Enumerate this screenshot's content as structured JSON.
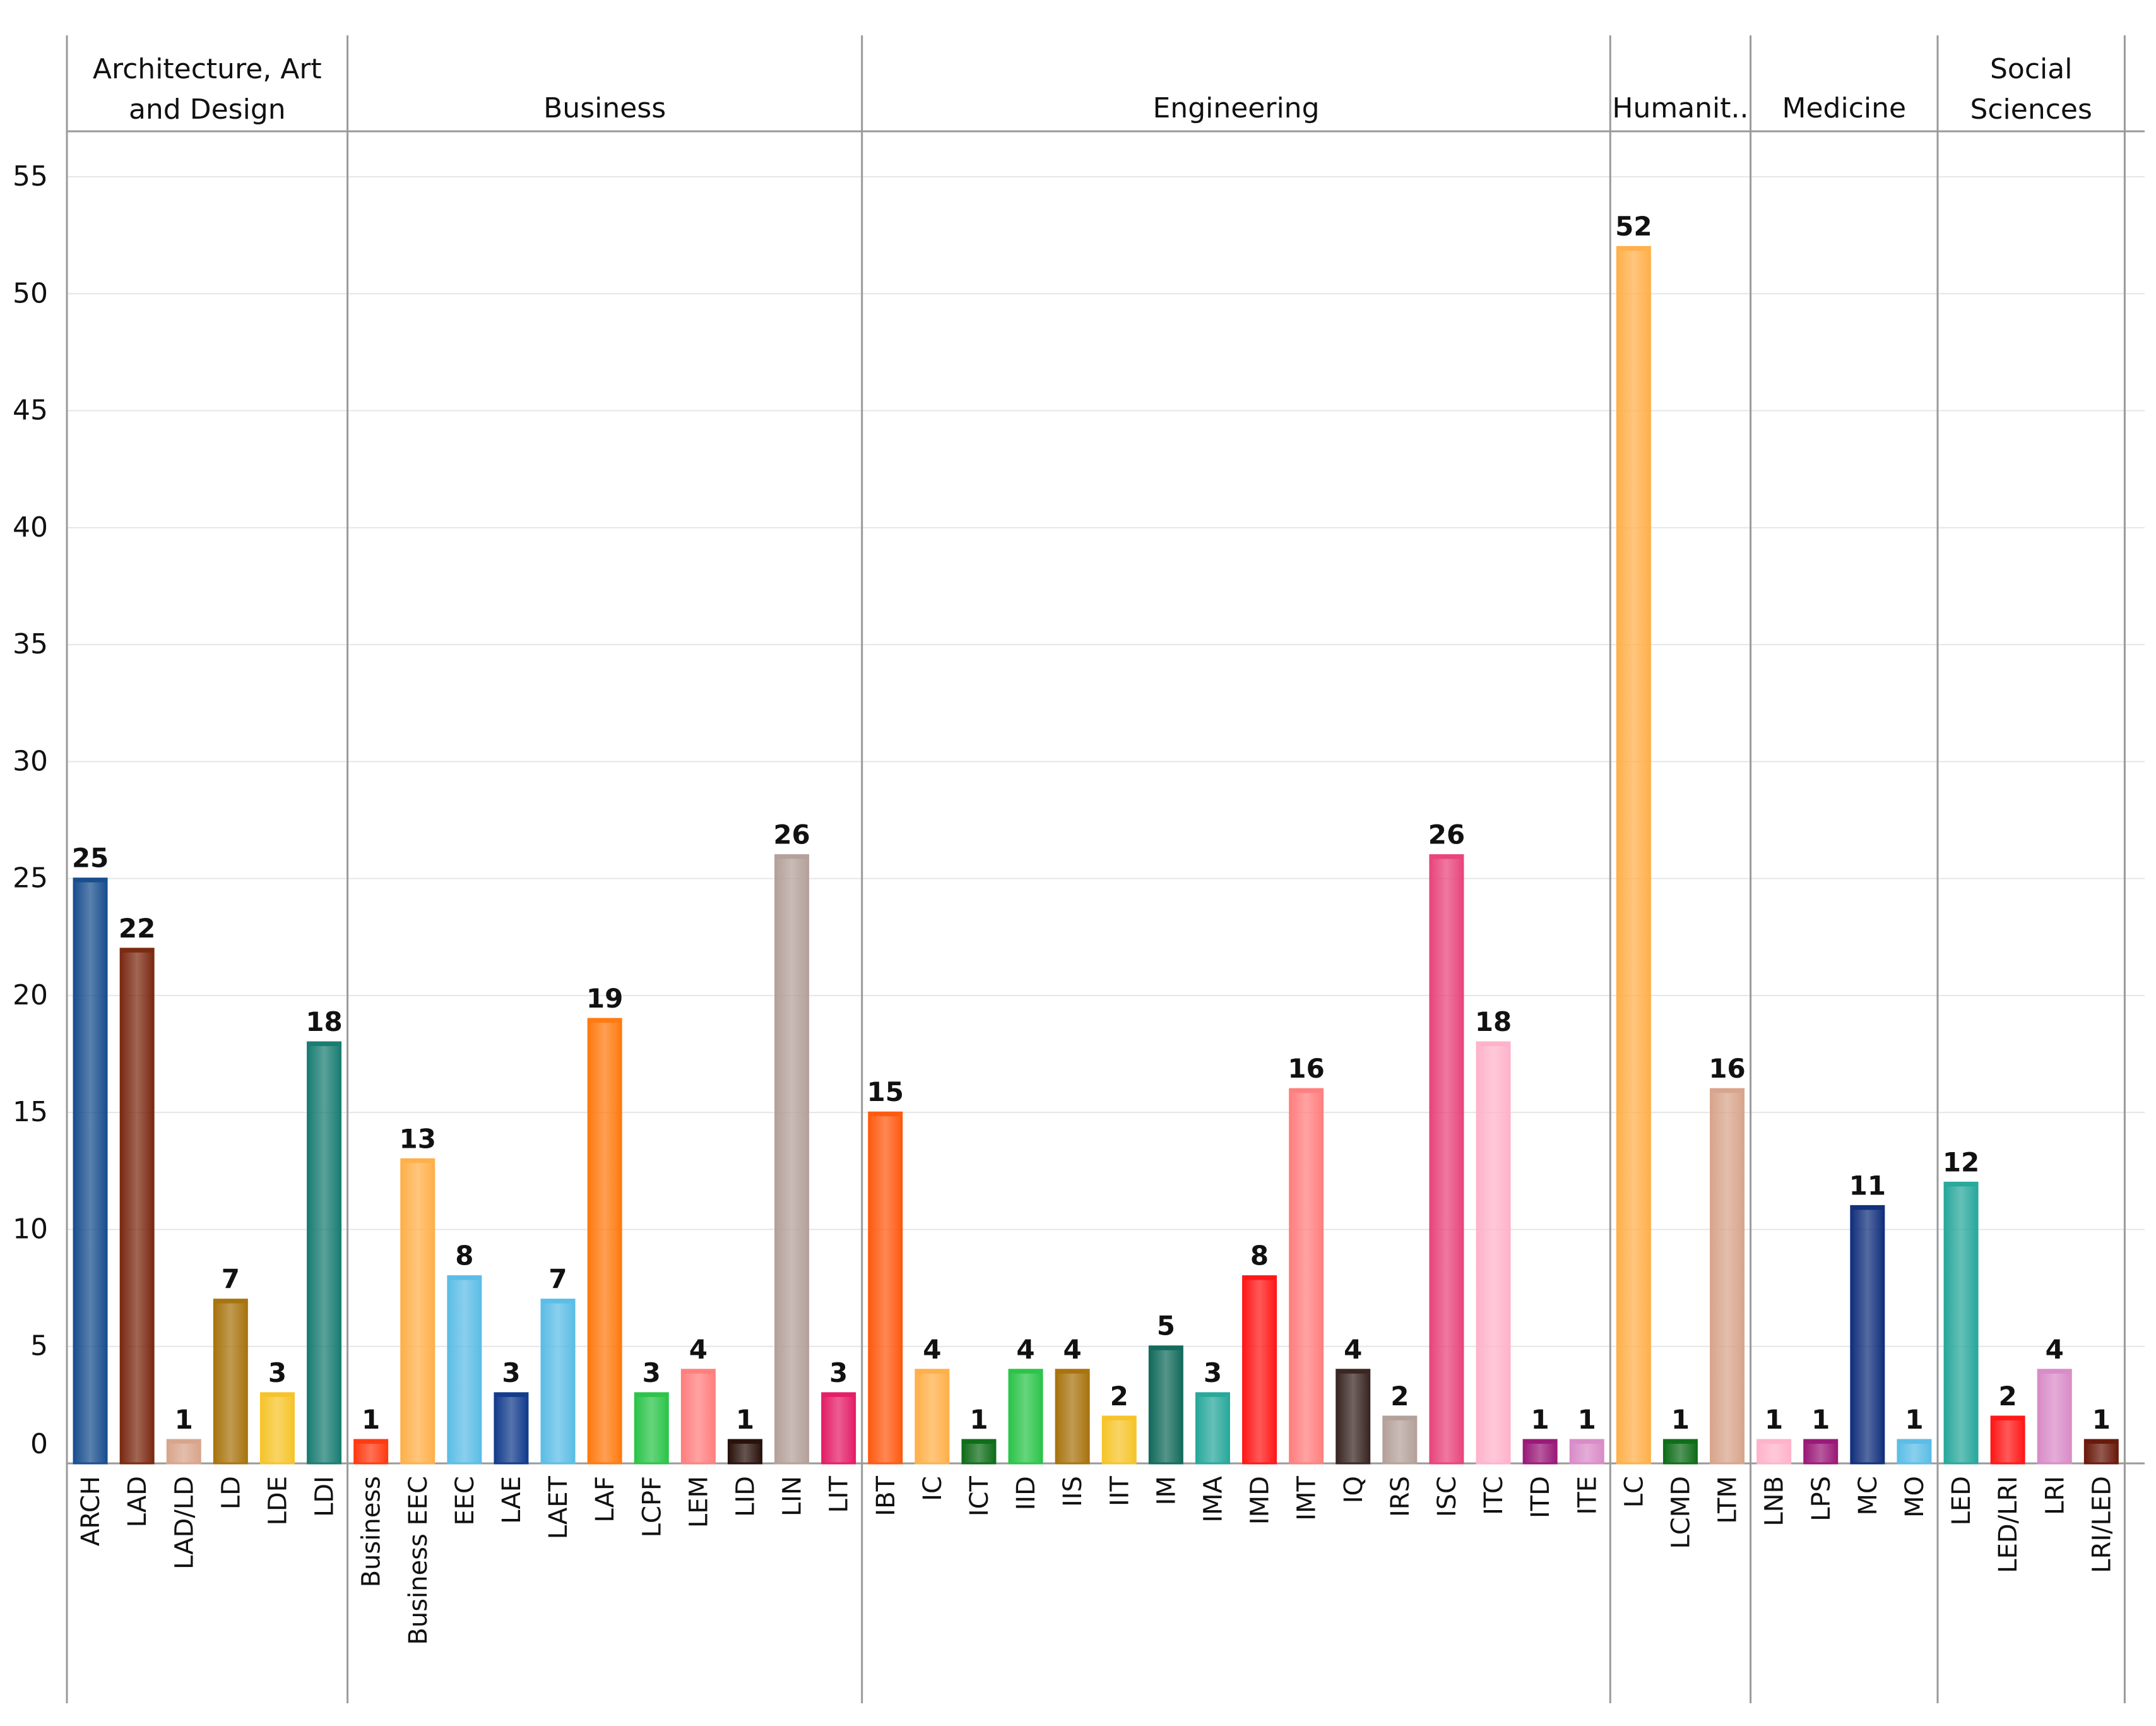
{
  "chart_data": {
    "type": "bar",
    "title": "",
    "xlabel": "",
    "ylabel": "",
    "ylim": [
      0,
      57
    ],
    "yticks": [
      0,
      5,
      10,
      15,
      20,
      25,
      30,
      35,
      40,
      45,
      50,
      55
    ],
    "grid": true,
    "panels": [
      {
        "name": "Architecture, Art and Design",
        "label_lines": [
          "Architecture, Art",
          "and Design"
        ],
        "bars": [
          {
            "category": "ARCH",
            "value": 25,
            "color": "#1a4f8f"
          },
          {
            "category": "LAD",
            "value": 22,
            "color": "#7b2a12"
          },
          {
            "category": "LAD/LD",
            "value": 1,
            "color": "#d8a58c"
          },
          {
            "category": "LD",
            "value": 7,
            "color": "#a8740f"
          },
          {
            "category": "LDE",
            "value": 3,
            "color": "#f6c42a"
          },
          {
            "category": "LDI",
            "value": 18,
            "color": "#1a7d72"
          }
        ]
      },
      {
        "name": "Business",
        "label_lines": [
          "Business"
        ],
        "bars": [
          {
            "category": "Business",
            "value": 1,
            "color": "#ff3b12"
          },
          {
            "category": "Business EEC",
            "value": 13,
            "color": "#ffb04a"
          },
          {
            "category": "EEC",
            "value": 8,
            "color": "#5cbde6"
          },
          {
            "category": "LAE",
            "value": 3,
            "color": "#133c8c"
          },
          {
            "category": "LAET",
            "value": 7,
            "color": "#5cbde6"
          },
          {
            "category": "LAF",
            "value": 19,
            "color": "#ff7a10"
          },
          {
            "category": "LCPF",
            "value": 3,
            "color": "#2cc44a"
          },
          {
            "category": "LEM",
            "value": 4,
            "color": "#ff7f7f"
          },
          {
            "category": "LID",
            "value": 1,
            "color": "#2a120c"
          },
          {
            "category": "LIN",
            "value": 26,
            "color": "#b4a19a"
          },
          {
            "category": "LIT",
            "value": 3,
            "color": "#e41e68"
          }
        ]
      },
      {
        "name": "Engineering",
        "label_lines": [
          "Engineering"
        ],
        "bars": [
          {
            "category": "IBT",
            "value": 15,
            "color": "#ff5a10"
          },
          {
            "category": "IC",
            "value": 4,
            "color": "#ffb04a"
          },
          {
            "category": "ICT",
            "value": 1,
            "color": "#106d1a"
          },
          {
            "category": "IID",
            "value": 4,
            "color": "#2cc44a"
          },
          {
            "category": "IIS",
            "value": 4,
            "color": "#a8740f"
          },
          {
            "category": "IIT",
            "value": 2,
            "color": "#f6c42a"
          },
          {
            "category": "IM",
            "value": 5,
            "color": "#136b5c"
          },
          {
            "category": "IMA",
            "value": 3,
            "color": "#29a89c"
          },
          {
            "category": "IMD",
            "value": 8,
            "color": "#ff1818"
          },
          {
            "category": "IMT",
            "value": 16,
            "color": "#ff7f7f"
          },
          {
            "category": "IQ",
            "value": 4,
            "color": "#3a2622"
          },
          {
            "category": "IRS",
            "value": 2,
            "color": "#b4a19a"
          },
          {
            "category": "ISC",
            "value": 26,
            "color": "#e8457c"
          },
          {
            "category": "ITC",
            "value": 18,
            "color": "#ffb3cb"
          },
          {
            "category": "ITD",
            "value": 1,
            "color": "#9a1a78"
          },
          {
            "category": "ITE",
            "value": 1,
            "color": "#d98cc8"
          }
        ]
      },
      {
        "name": "Humanit..",
        "label_lines": [
          "Humanit.."
        ],
        "bars": [
          {
            "category": "LC",
            "value": 52,
            "color": "#ffb04a"
          },
          {
            "category": "LCMD",
            "value": 1,
            "color": "#106d1a"
          },
          {
            "category": "LTM",
            "value": 16,
            "color": "#d8a58c"
          }
        ]
      },
      {
        "name": "Medicine",
        "label_lines": [
          "Medicine"
        ],
        "bars": [
          {
            "category": "LNB",
            "value": 1,
            "color": "#ffb3cb"
          },
          {
            "category": "LPS",
            "value": 1,
            "color": "#9a1a78"
          },
          {
            "category": "MC",
            "value": 11,
            "color": "#12307c"
          },
          {
            "category": "MO",
            "value": 1,
            "color": "#5cbde6"
          }
        ]
      },
      {
        "name": "Social Sciences",
        "label_lines": [
          "Social",
          "Sciences"
        ],
        "bars": [
          {
            "category": "LED",
            "value": 12,
            "color": "#29a89c"
          },
          {
            "category": "LED/LRI",
            "value": 2,
            "color": "#ff1818"
          },
          {
            "category": "LRI",
            "value": 4,
            "color": "#d98cc8"
          },
          {
            "category": "LRI/LED",
            "value": 1,
            "color": "#6a1a0c"
          }
        ]
      }
    ]
  }
}
